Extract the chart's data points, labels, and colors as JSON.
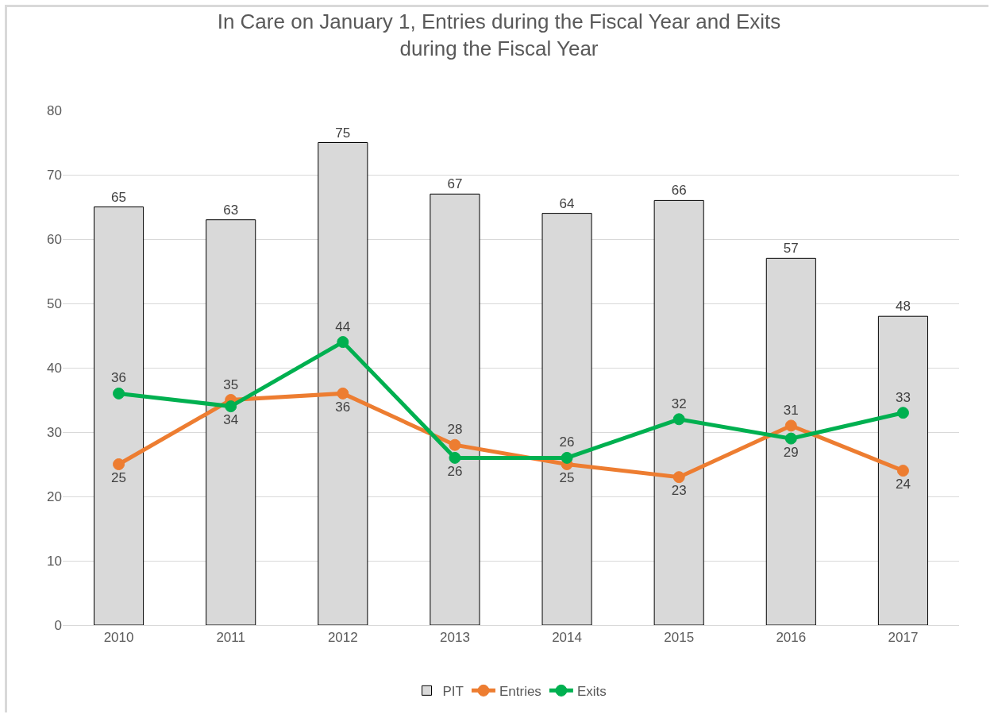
{
  "chart_data": {
    "type": "bar",
    "title": "In Care on January 1, Entries during the Fiscal Year and Exits during the Fiscal Year",
    "categories": [
      "2010",
      "2011",
      "2012",
      "2013",
      "2014",
      "2015",
      "2016",
      "2017"
    ],
    "series": [
      {
        "name": "PIT",
        "color": "#d9d9d9",
        "values": [
          65,
          63,
          75,
          67,
          64,
          66,
          57,
          48
        ]
      },
      {
        "name": "Entries",
        "type": "line",
        "color": "#ed7d31",
        "values": [
          25,
          35,
          36,
          28,
          25,
          23,
          31,
          24
        ]
      },
      {
        "name": "Exits",
        "type": "line",
        "color": "#00b050",
        "values": [
          36,
          34,
          44,
          26,
          26,
          32,
          29,
          33
        ]
      }
    ],
    "ylim": [
      0,
      80
    ],
    "yticks": [
      0,
      10,
      20,
      30,
      40,
      50,
      60,
      70,
      80
    ],
    "grid": "y",
    "legend": "bottom",
    "marker": "circle",
    "line_style": "solid",
    "data_labels": true
  }
}
